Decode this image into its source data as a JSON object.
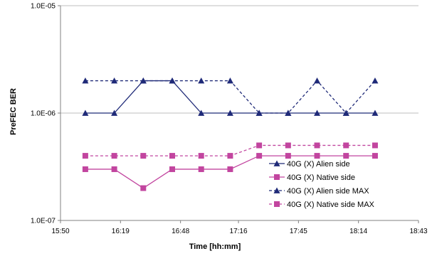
{
  "chart_data": {
    "type": "line",
    "xlabel": "Time [hh:mm]",
    "ylabel": "PreFEC BER",
    "y_scale": "log",
    "ylim": [
      1e-07,
      1e-05
    ],
    "y_ticks": [
      "1.0E-07",
      "1.0E-06",
      "1.0E-05"
    ],
    "xlim": [
      "15:50",
      "18:43"
    ],
    "x_ticks": [
      "15:50",
      "16:19",
      "16:48",
      "17:16",
      "17:45",
      "18:14",
      "18:43"
    ],
    "x": [
      "16:02",
      "16:16",
      "16:30",
      "16:44",
      "16:58",
      "17:12",
      "17:26",
      "17:40",
      "17:54",
      "18:08",
      "18:22"
    ],
    "grid": {
      "y": true,
      "x": false
    },
    "legend_position": "right",
    "series": [
      {
        "name": "40G (X) Alien side",
        "color": "#1f2a78",
        "marker": "triangle",
        "dash": "solid",
        "values": [
          1e-06,
          1e-06,
          2e-06,
          2e-06,
          1e-06,
          1e-06,
          1e-06,
          1e-06,
          1e-06,
          1e-06,
          1e-06
        ]
      },
      {
        "name": "40G (X) Native side",
        "color": "#c2459f",
        "marker": "square",
        "dash": "solid",
        "values": [
          3e-07,
          3e-07,
          2e-07,
          3e-07,
          3e-07,
          3e-07,
          4e-07,
          4e-07,
          4e-07,
          4e-07,
          4e-07
        ]
      },
      {
        "name": "40G (X) Alien side MAX",
        "color": "#1f2a78",
        "marker": "triangle",
        "dash": "dashed",
        "values": [
          2e-06,
          2e-06,
          2e-06,
          2e-06,
          2e-06,
          2e-06,
          1e-06,
          1e-06,
          2e-06,
          1e-06,
          2e-06
        ]
      },
      {
        "name": "40G (X) Native side MAX",
        "color": "#c2459f",
        "marker": "square",
        "dash": "dashed",
        "values": [
          4e-07,
          4e-07,
          4e-07,
          4e-07,
          4e-07,
          4e-07,
          5e-07,
          5e-07,
          5e-07,
          5e-07,
          5e-07
        ]
      }
    ]
  }
}
